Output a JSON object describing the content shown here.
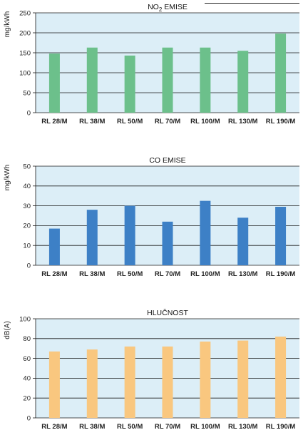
{
  "chart_data": [
    {
      "type": "bar",
      "title": "NO",
      "title_subscript": "2",
      "title_suffix": " EMISE",
      "ylabel": "mg/kWh",
      "xlabel": "",
      "categories": [
        "RL 28/M",
        "RL 38/M",
        "RL 50/M",
        "RL 70/M",
        "RL 100/M",
        "RL 130/M",
        "RL 190/M"
      ],
      "values": [
        148,
        163,
        143,
        163,
        163,
        155,
        198
      ],
      "ylim": [
        0,
        250
      ],
      "yticks": [
        0,
        50,
        100,
        150,
        200,
        250
      ],
      "grid": true,
      "bar_color": "#6cc08b",
      "background_color": "#dceef7"
    },
    {
      "type": "bar",
      "title": "CO EMISE",
      "ylabel": "mg/kWh",
      "xlabel": "",
      "categories": [
        "RL 28/M",
        "RL 38/M",
        "RL 50/M",
        "RL 70/M",
        "RL 100/M",
        "RL 130/M",
        "RL 190/M"
      ],
      "values": [
        18.5,
        28,
        30,
        22,
        32.5,
        24,
        29.5
      ],
      "ylim": [
        0,
        50
      ],
      "yticks": [
        0,
        10,
        20,
        30,
        40,
        50
      ],
      "grid": true,
      "bar_color": "#3d80c6",
      "background_color": "#dceef7"
    },
    {
      "type": "bar",
      "title": "HLUČNOST",
      "ylabel": "dB(A)",
      "xlabel": "",
      "categories": [
        "RL 28/M",
        "RL 38/M",
        "RL 50/M",
        "RL 70/M",
        "RL 100/M",
        "RL 130/M",
        "RL 190/M"
      ],
      "values": [
        67,
        69,
        72,
        72,
        77,
        78,
        82
      ],
      "ylim": [
        0,
        100
      ],
      "yticks": [
        0,
        20,
        40,
        60,
        80,
        100
      ],
      "grid": true,
      "bar_color": "#f9c77f",
      "background_color": "#dceef7"
    }
  ]
}
